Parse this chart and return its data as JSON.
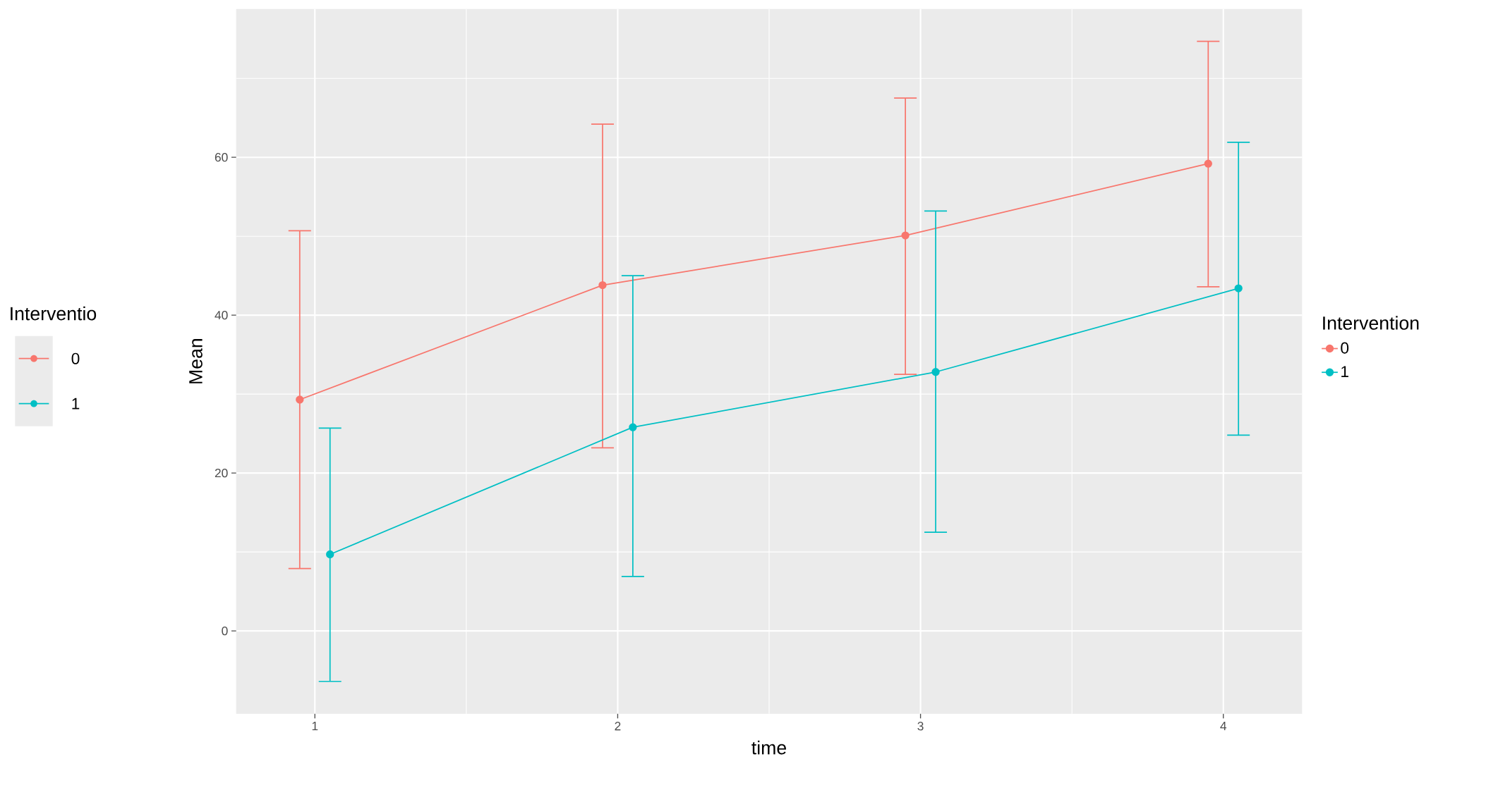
{
  "chart_data": {
    "type": "line",
    "xlabel": "time",
    "ylabel": "Mean",
    "legend_title": "Intervention",
    "annotations": [
      "Interventio"
    ],
    "xlim": [
      0.74,
      4.26
    ],
    "ylim": [
      -10.5,
      78.8
    ],
    "xticks": [
      1,
      2,
      3,
      4
    ],
    "yticks": [
      0,
      20,
      40,
      60
    ],
    "grid": true,
    "legend": "right",
    "marker": "circle",
    "line_style": "solid",
    "series": [
      {
        "name": "0",
        "color": "#F8766D",
        "x": [
          0.95,
          1.95,
          2.95,
          3.95
        ],
        "values": [
          29.3,
          43.8,
          50.1,
          59.2
        ],
        "errors": [
          [
            7.9,
            50.7
          ],
          [
            23.2,
            64.2
          ],
          [
            32.5,
            67.5
          ],
          [
            43.6,
            74.7
          ]
        ]
      },
      {
        "name": "1",
        "color": "#00BFC4",
        "x": [
          1.05,
          2.05,
          3.05,
          4.05
        ],
        "values": [
          9.7,
          25.8,
          32.8,
          43.4
        ],
        "errors": [
          [
            -6.4,
            25.7
          ],
          [
            6.9,
            45.0
          ],
          [
            12.5,
            53.2
          ],
          [
            24.8,
            61.9
          ]
        ]
      }
    ]
  }
}
